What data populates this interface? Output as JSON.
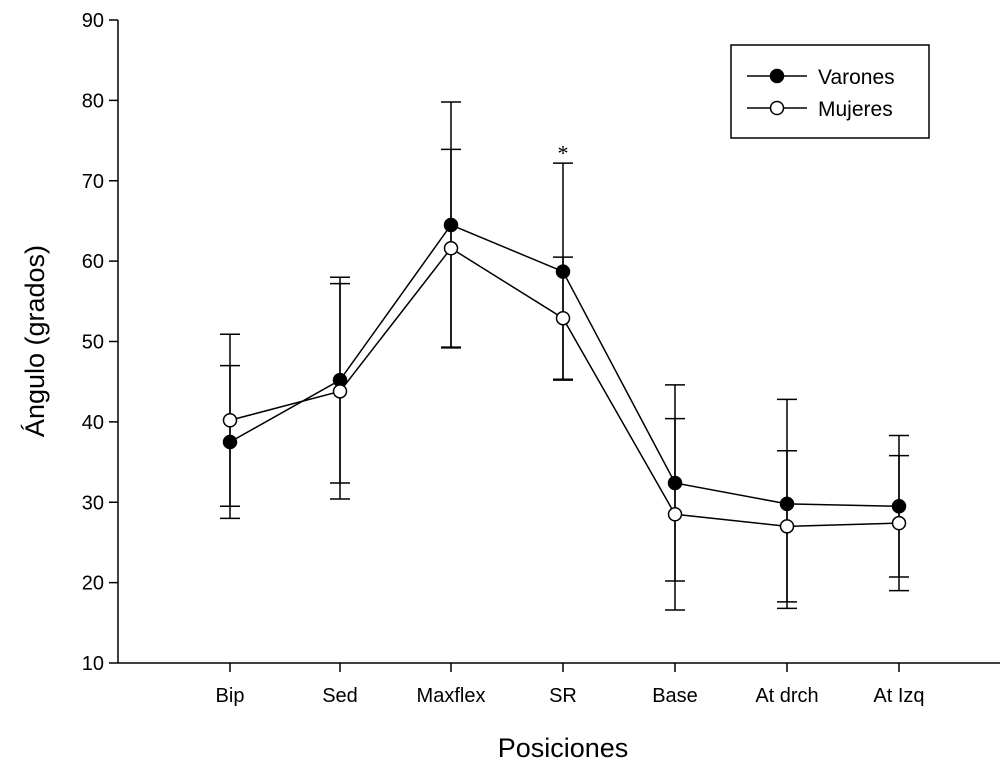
{
  "chart_data": {
    "type": "line",
    "xlabel": "Posiciones",
    "ylabel": "Ángulo (grados)",
    "ylim": [
      10,
      90
    ],
    "yticks": [
      10,
      20,
      30,
      40,
      50,
      60,
      70,
      80,
      90
    ],
    "grid": false,
    "legend_position": "top-right",
    "categories": [
      "Bip",
      "Sed",
      "Maxflex",
      "SR",
      "Base",
      "At drch",
      "At Izq"
    ],
    "series": [
      {
        "name": "Varones",
        "marker": "filled-circle",
        "color": "#000000",
        "values": [
          37.5,
          45.2,
          64.5,
          58.7,
          32.4,
          29.8,
          29.5
        ],
        "error": [
          9.5,
          12.8,
          15.3,
          13.5,
          12.2,
          13.0,
          8.8
        ]
      },
      {
        "name": "Mujeres",
        "marker": "open-circle",
        "color": "#000000",
        "values": [
          40.2,
          43.8,
          61.6,
          52.9,
          28.5,
          27.0,
          27.4
        ],
        "error": [
          10.7,
          13.4,
          12.3,
          7.6,
          11.9,
          9.4,
          8.4
        ]
      }
    ],
    "annotations": [
      {
        "text": "*",
        "category": "SR",
        "y": 73.5
      }
    ]
  }
}
